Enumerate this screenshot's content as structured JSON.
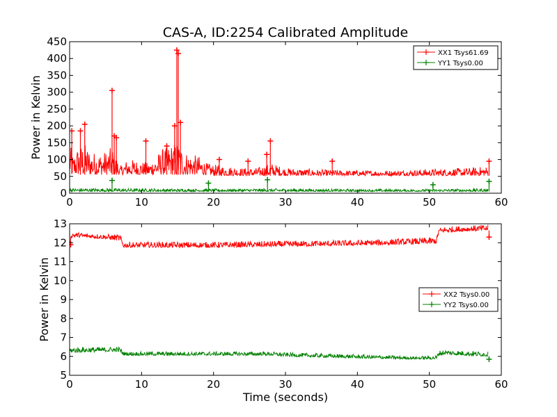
{
  "title": "CAS-A, ID:2254 Calibrated Amplitude",
  "chart_data": [
    {
      "type": "line",
      "panel": "top",
      "xlabel": "",
      "ylabel": "Power in Kelvin",
      "xlim": [
        0,
        60
      ],
      "ylim": [
        0,
        450
      ],
      "xticks": [
        "0",
        "10",
        "20",
        "30",
        "40",
        "50",
        "60"
      ],
      "yticks": [
        "0",
        "50",
        "100",
        "150",
        "200",
        "250",
        "300",
        "350",
        "400",
        "450"
      ],
      "legend_position": "top-right",
      "series": [
        {
          "name": "XX1 Tsys61.69",
          "color": "#ff0000",
          "band_x": [
            0,
            0.5,
            1,
            2,
            3,
            4,
            5,
            6,
            7,
            8,
            9,
            10,
            11,
            12,
            13,
            14,
            15,
            16,
            17,
            18,
            19,
            20,
            22,
            24,
            26,
            28,
            30,
            35,
            40,
            45,
            50,
            55,
            58.2
          ],
          "band_lo": [
            60,
            55,
            55,
            55,
            55,
            55,
            55,
            55,
            55,
            55,
            55,
            55,
            55,
            55,
            55,
            55,
            55,
            55,
            55,
            55,
            55,
            52,
            52,
            52,
            52,
            52,
            52,
            52,
            52,
            52,
            52,
            52,
            52
          ],
          "band_hi": [
            150,
            110,
            135,
            150,
            125,
            120,
            125,
            140,
            80,
            100,
            100,
            95,
            90,
            110,
            135,
            145,
            155,
            125,
            115,
            110,
            90,
            85,
            80,
            75,
            75,
            90,
            75,
            70,
            68,
            68,
            72,
            75,
            80
          ],
          "spikes": [
            {
              "x": 0.3,
              "y": 185
            },
            {
              "x": 1.5,
              "y": 185
            },
            {
              "x": 2.1,
              "y": 205
            },
            {
              "x": 5.9,
              "y": 305
            },
            {
              "x": 6.2,
              "y": 170
            },
            {
              "x": 6.5,
              "y": 165
            },
            {
              "x": 10.6,
              "y": 155
            },
            {
              "x": 13.5,
              "y": 140
            },
            {
              "x": 14.6,
              "y": 200
            },
            {
              "x": 14.9,
              "y": 425
            },
            {
              "x": 15.1,
              "y": 415
            },
            {
              "x": 15.4,
              "y": 210
            },
            {
              "x": 20.8,
              "y": 100
            },
            {
              "x": 24.8,
              "y": 95
            },
            {
              "x": 27.9,
              "y": 155
            },
            {
              "x": 27.4,
              "y": 115
            },
            {
              "x": 36.5,
              "y": 95
            },
            {
              "x": 58.3,
              "y": 95
            }
          ]
        },
        {
          "name": "YY1 Tsys0.00",
          "color": "#008000",
          "band_x": [
            0,
            10,
            20,
            30,
            40,
            50,
            58.2
          ],
          "band_lo": [
            5,
            5,
            5,
            5,
            5,
            5,
            5
          ],
          "band_hi": [
            15,
            14,
            13,
            14,
            12,
            12,
            14
          ],
          "spikes": [
            {
              "x": 5.9,
              "y": 38
            },
            {
              "x": 19.3,
              "y": 30
            },
            {
              "x": 27.5,
              "y": 40
            },
            {
              "x": 50.5,
              "y": 25
            },
            {
              "x": 58.3,
              "y": 35
            }
          ]
        }
      ]
    },
    {
      "type": "line",
      "panel": "bottom",
      "xlabel": "Time (seconds)",
      "ylabel": "Power in Kelvin",
      "xlim": [
        0,
        60
      ],
      "ylim": [
        5,
        13
      ],
      "xticks": [
        "0",
        "10",
        "20",
        "30",
        "40",
        "50",
        "60"
      ],
      "yticks": [
        "5",
        "6",
        "7",
        "8",
        "9",
        "10",
        "11",
        "12",
        "13"
      ],
      "legend_position": "center-right",
      "series": [
        {
          "name": "XX2 Tsys0.00",
          "color": "#ff0000",
          "band_x": [
            0,
            0.3,
            1,
            5,
            7,
            7.5,
            10,
            20,
            30,
            40,
            45,
            51,
            51.3,
            52,
            55,
            58.2
          ],
          "band_lo": [
            11.9,
            12.3,
            12.3,
            12.2,
            12.1,
            11.75,
            11.75,
            11.75,
            11.8,
            11.85,
            11.9,
            11.95,
            12.5,
            12.55,
            12.6,
            12.65
          ],
          "band_hi": [
            12.1,
            12.6,
            12.55,
            12.45,
            12.45,
            12.05,
            12.05,
            12.05,
            12.1,
            12.15,
            12.2,
            12.3,
            12.8,
            12.85,
            12.9,
            12.95
          ],
          "spikes": [
            {
              "x": 0.15,
              "y": 11.9
            },
            {
              "x": 58.3,
              "y": 12.3
            }
          ]
        },
        {
          "name": "YY2 Tsys0.00",
          "color": "#008000",
          "band_x": [
            0,
            5,
            7,
            7.5,
            10,
            20,
            28,
            30,
            40,
            48,
            51,
            51.3,
            52,
            55,
            58.2
          ],
          "band_lo": [
            6.2,
            6.25,
            6.25,
            6.05,
            6.05,
            6.05,
            6.05,
            6.0,
            5.9,
            5.85,
            5.85,
            6.05,
            6.1,
            6.05,
            6.0
          ],
          "band_hi": [
            6.5,
            6.5,
            6.5,
            6.25,
            6.25,
            6.25,
            6.25,
            6.2,
            6.1,
            6.0,
            6.05,
            6.3,
            6.35,
            6.3,
            6.25
          ],
          "spikes": [
            {
              "x": 58.3,
              "y": 5.85
            }
          ]
        }
      ]
    }
  ]
}
